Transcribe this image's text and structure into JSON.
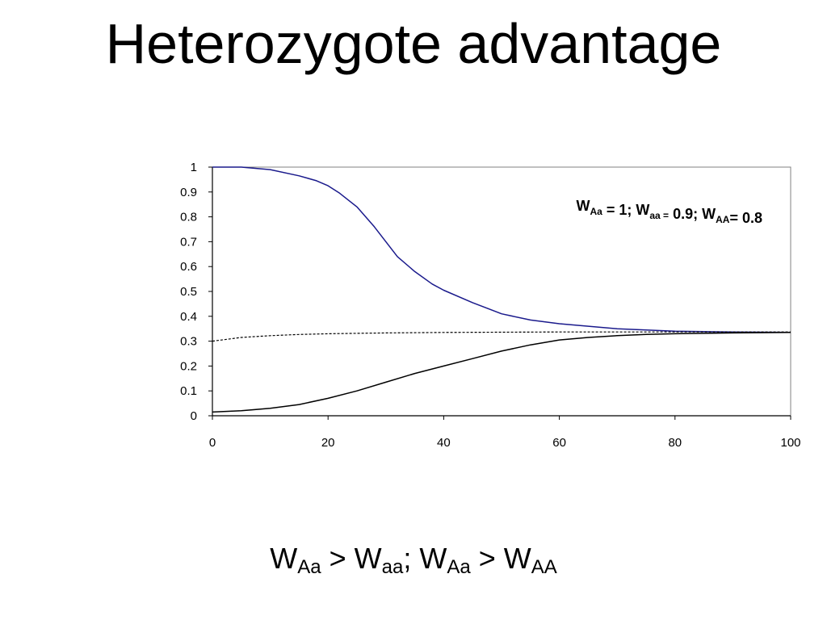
{
  "slide": {
    "title": "Heterozygote advantage"
  },
  "caption": {
    "parts": [
      {
        "main": "W",
        "sub": "Aa"
      },
      {
        "text": " > "
      },
      {
        "main": "W",
        "sub": "aa"
      },
      {
        "text": "; "
      },
      {
        "main": "W",
        "sub": "Aa"
      },
      {
        "text": " > "
      },
      {
        "main": "W",
        "sub": "AA"
      }
    ]
  },
  "chart_data": {
    "type": "line",
    "title": "",
    "xlabel": "",
    "ylabel": "",
    "xlim": [
      0,
      100
    ],
    "ylim": [
      0,
      1
    ],
    "x_ticks": [
      "0",
      "20",
      "40",
      "60",
      "80",
      "100"
    ],
    "y_ticks": [
      "0",
      "0.1",
      "0.2",
      "0.3",
      "0.4",
      "0.5",
      "0.6",
      "0.7",
      "0.8",
      "0.9",
      "1"
    ],
    "grid": false,
    "legend": "none",
    "annotation": {
      "parts": [
        {
          "main": "W",
          "sub": "Aa"
        },
        {
          "text": " = 1; "
        },
        {
          "main": "W",
          "sub": "aa ="
        },
        {
          "text": " 0.9; "
        },
        {
          "main": "W",
          "sub": "AA"
        },
        {
          "text": "= 0.8"
        }
      ],
      "position": "top-right"
    },
    "series": [
      {
        "color": "#1a1a8c",
        "style": "solid",
        "x": [
          0,
          5,
          10,
          15,
          18,
          20,
          22,
          25,
          28,
          30,
          32,
          35,
          38,
          40,
          45,
          50,
          55,
          60,
          65,
          70,
          75,
          80,
          90,
          100
        ],
        "y": [
          1.0,
          1.0,
          0.99,
          0.965,
          0.945,
          0.925,
          0.895,
          0.84,
          0.76,
          0.7,
          0.64,
          0.58,
          0.53,
          0.505,
          0.455,
          0.41,
          0.385,
          0.37,
          0.36,
          0.35,
          0.345,
          0.34,
          0.337,
          0.335
        ]
      },
      {
        "color": "#000000",
        "style": "solid",
        "x": [
          0,
          5,
          10,
          15,
          20,
          25,
          30,
          35,
          40,
          45,
          50,
          55,
          60,
          65,
          70,
          75,
          80,
          90,
          100
        ],
        "y": [
          0.015,
          0.02,
          0.03,
          0.045,
          0.07,
          0.1,
          0.135,
          0.17,
          0.2,
          0.23,
          0.26,
          0.285,
          0.305,
          0.315,
          0.322,
          0.327,
          0.33,
          0.333,
          0.335
        ]
      },
      {
        "color": "#000000",
        "style": "dashed",
        "x": [
          0,
          5,
          10,
          15,
          20,
          30,
          40,
          50,
          60,
          70,
          80,
          90,
          100
        ],
        "y": [
          0.3,
          0.315,
          0.322,
          0.327,
          0.33,
          0.333,
          0.335,
          0.336,
          0.337,
          0.337,
          0.337,
          0.337,
          0.337
        ]
      }
    ]
  }
}
